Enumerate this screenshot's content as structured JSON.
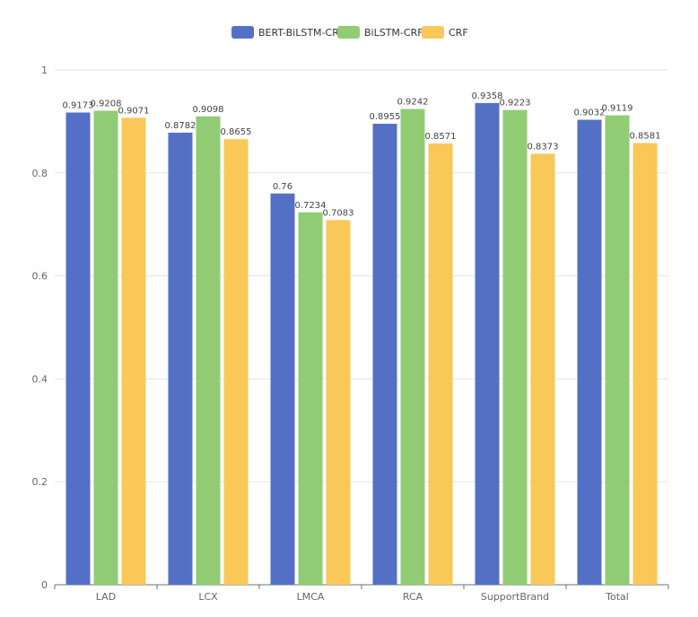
{
  "chart_data": {
    "type": "bar",
    "categories": [
      "LAD",
      "LCX",
      "LMCA",
      "RCA",
      "SupportBrand",
      "Total"
    ],
    "series": [
      {
        "name": "BERT-BiLSTM-CRF",
        "color": "#5470c6",
        "values": [
          0.9173,
          0.8782,
          0.76,
          0.8955,
          0.9358,
          0.9032
        ],
        "labels": [
          "0.9173",
          "0.8782",
          "0.76",
          "0.8955",
          "0.9358",
          "0.9032"
        ]
      },
      {
        "name": "BiLSTM-CRF",
        "color": "#91cc75",
        "values": [
          0.9208,
          0.9098,
          0.7234,
          0.9242,
          0.9223,
          0.9119
        ],
        "labels": [
          "0.9208",
          "0.9098",
          "0.7234",
          "0.9242",
          "0.9223",
          "0.9119"
        ]
      },
      {
        "name": "CRF",
        "color": "#fac858",
        "values": [
          0.9071,
          0.8655,
          0.7083,
          0.8571,
          0.8373,
          0.8581
        ],
        "labels": [
          "0.9071",
          "0.8655",
          "0.7083",
          "0.8571",
          "0.8373",
          "0.8581"
        ]
      }
    ],
    "yticks": [
      "0",
      "0.2",
      "0.4",
      "0.6",
      "0.8",
      "1"
    ],
    "ylim": [
      0,
      1
    ],
    "grid": true,
    "legend_position": "top-center"
  }
}
